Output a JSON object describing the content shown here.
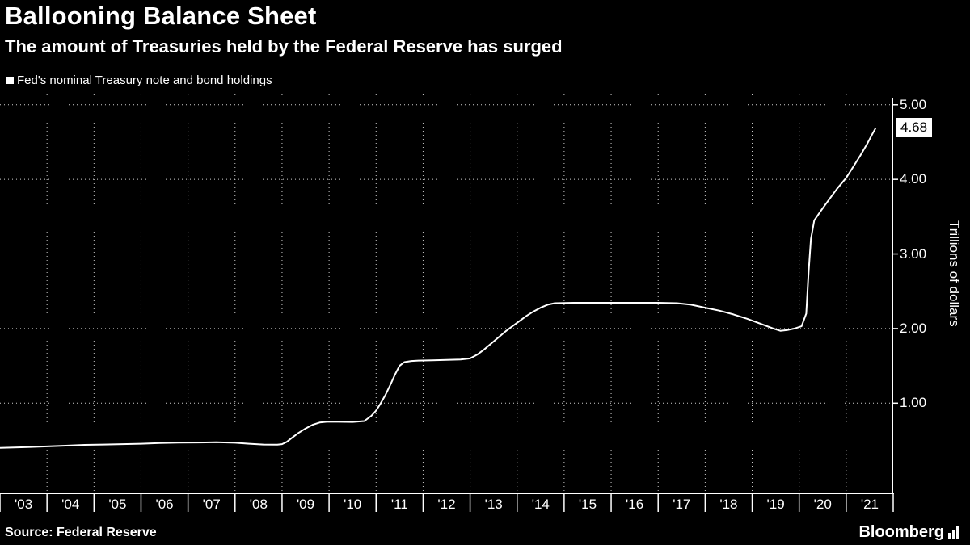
{
  "chart_data": {
    "type": "line",
    "title": "Ballooning Balance Sheet",
    "subtitle": "The amount of Treasuries held by the Federal Reserve has surged",
    "legend_position": "top-left",
    "xlabel": "",
    "ylabel": "Trillions of dollars",
    "x_range": [
      2003,
      2022
    ],
    "y_range": [
      -0.22,
      5.16
    ],
    "y_ticks": [
      1,
      2,
      3,
      4,
      5
    ],
    "x_ticks": [
      "'03",
      "'04",
      "'05",
      "'06",
      "'07",
      "'08",
      "'09",
      "'10",
      "'11",
      "'12",
      "'13",
      "'14",
      "'15",
      "'16",
      "'17",
      "'18",
      "'19",
      "'20",
      "'21"
    ],
    "grid": true,
    "background_color": "#000000",
    "line_color": "#ffffff",
    "last_value_label": "4.68",
    "series": [
      {
        "name": "Fed's nominal Treasury note and bond holdings",
        "color": "#ffffff",
        "points": [
          [
            2003.0,
            0.4
          ],
          [
            2003.3,
            0.405
          ],
          [
            2003.6,
            0.41
          ],
          [
            2004.0,
            0.42
          ],
          [
            2004.4,
            0.43
          ],
          [
            2004.8,
            0.44
          ],
          [
            2005.2,
            0.445
          ],
          [
            2005.6,
            0.45
          ],
          [
            2006.0,
            0.455
          ],
          [
            2006.4,
            0.465
          ],
          [
            2006.8,
            0.47
          ],
          [
            2007.2,
            0.472
          ],
          [
            2007.6,
            0.475
          ],
          [
            2008.0,
            0.468
          ],
          [
            2008.3,
            0.455
          ],
          [
            2008.6,
            0.445
          ],
          [
            2008.9,
            0.443
          ],
          [
            2009.0,
            0.45
          ],
          [
            2009.1,
            0.48
          ],
          [
            2009.2,
            0.53
          ],
          [
            2009.35,
            0.6
          ],
          [
            2009.5,
            0.66
          ],
          [
            2009.65,
            0.71
          ],
          [
            2009.8,
            0.74
          ],
          [
            2009.95,
            0.75
          ],
          [
            2010.2,
            0.75
          ],
          [
            2010.5,
            0.748
          ],
          [
            2010.75,
            0.76
          ],
          [
            2010.9,
            0.83
          ],
          [
            2011.0,
            0.9
          ],
          [
            2011.1,
            1.0
          ],
          [
            2011.2,
            1.11
          ],
          [
            2011.3,
            1.24
          ],
          [
            2011.4,
            1.38
          ],
          [
            2011.5,
            1.5
          ],
          [
            2011.6,
            1.55
          ],
          [
            2011.75,
            1.565
          ],
          [
            2011.9,
            1.57
          ],
          [
            2012.2,
            1.575
          ],
          [
            2012.5,
            1.58
          ],
          [
            2012.8,
            1.585
          ],
          [
            2013.0,
            1.6
          ],
          [
            2013.15,
            1.65
          ],
          [
            2013.3,
            1.72
          ],
          [
            2013.45,
            1.8
          ],
          [
            2013.6,
            1.88
          ],
          [
            2013.75,
            1.96
          ],
          [
            2013.9,
            2.03
          ],
          [
            2014.05,
            2.1
          ],
          [
            2014.2,
            2.17
          ],
          [
            2014.35,
            2.23
          ],
          [
            2014.5,
            2.28
          ],
          [
            2014.65,
            2.32
          ],
          [
            2014.8,
            2.34
          ],
          [
            2015.2,
            2.345
          ],
          [
            2015.6,
            2.345
          ],
          [
            2016.0,
            2.345
          ],
          [
            2016.5,
            2.345
          ],
          [
            2017.0,
            2.345
          ],
          [
            2017.4,
            2.34
          ],
          [
            2017.7,
            2.32
          ],
          [
            2018.0,
            2.28
          ],
          [
            2018.3,
            2.24
          ],
          [
            2018.6,
            2.19
          ],
          [
            2018.9,
            2.13
          ],
          [
            2019.2,
            2.06
          ],
          [
            2019.45,
            2.0
          ],
          [
            2019.6,
            1.97
          ],
          [
            2019.75,
            1.98
          ],
          [
            2019.9,
            2.0
          ],
          [
            2020.05,
            2.03
          ],
          [
            2020.15,
            2.2
          ],
          [
            2020.2,
            2.75
          ],
          [
            2020.25,
            3.2
          ],
          [
            2020.32,
            3.45
          ],
          [
            2020.45,
            3.57
          ],
          [
            2020.6,
            3.7
          ],
          [
            2020.8,
            3.87
          ],
          [
            2021.0,
            4.02
          ],
          [
            2021.15,
            4.17
          ],
          [
            2021.3,
            4.32
          ],
          [
            2021.45,
            4.48
          ],
          [
            2021.55,
            4.6
          ],
          [
            2021.62,
            4.68
          ]
        ]
      }
    ]
  },
  "footer": {
    "source": "Source: Federal Reserve",
    "brand": "Bloomberg"
  }
}
